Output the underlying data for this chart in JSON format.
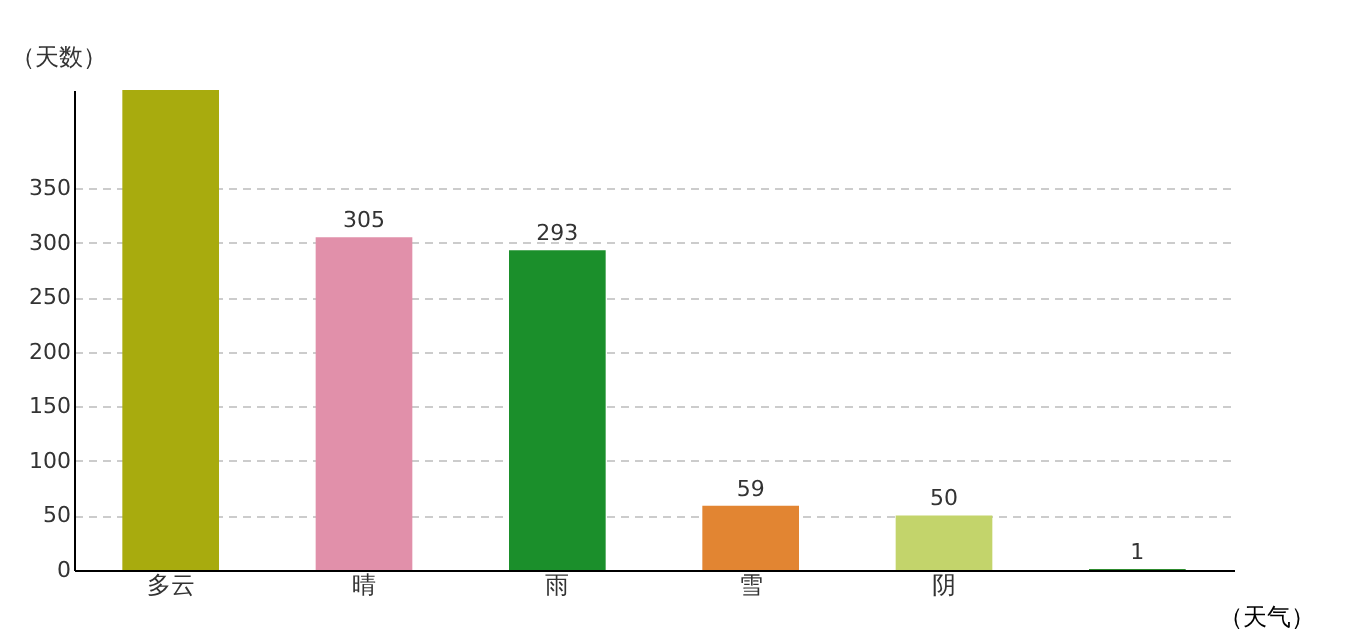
{
  "chart_data": {
    "type": "bar",
    "xlabel": "（天气）",
    "ylabel": "（天数）",
    "categories": [
      "多云",
      "晴",
      "雨",
      "雪",
      "阴",
      null
    ],
    "values": [
      440,
      305,
      293,
      59,
      50,
      1
    ],
    "value_labels": [
      null,
      "305",
      "293",
      "59",
      "50",
      "1"
    ],
    "colors": [
      "#a8ab0e",
      "#e190aa",
      "#1b8f2b",
      "#e28532",
      "#c3d46b",
      "#2e8b2e"
    ],
    "ylim": [
      0,
      440
    ],
    "yticks": [
      0,
      50,
      100,
      150,
      200,
      250,
      300,
      350
    ],
    "grid": "y"
  }
}
